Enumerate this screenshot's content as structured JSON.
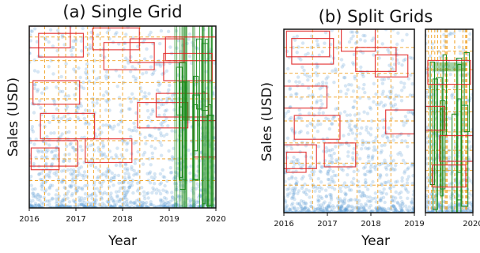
{
  "chart_data": [
    {
      "type": "scatter",
      "title": "(a) Single Grid",
      "xlabel": "Year",
      "ylabel": "Sales (USD)",
      "xlim": [
        2016,
        2020
      ],
      "xticks": [
        "2016",
        "2017",
        "2018",
        "2019",
        "2020"
      ],
      "ylim": [
        0,
        1
      ],
      "grid": "dashed",
      "scatter_color": "#5b9bd5",
      "box_colors": {
        "red": "#e02020",
        "green": "#1a8a1a",
        "grid": "#f0a020"
      }
    },
    {
      "type": "scatter",
      "title": "(b) Split Grids",
      "xlabel": "Year",
      "ylabel": "Sales (USD)",
      "xlim": [
        2016,
        2020
      ],
      "xticks": [
        "2016",
        "2017",
        "2018",
        "2019",
        "2020"
      ],
      "ylim": [
        0,
        1
      ],
      "grid": "dashed",
      "split_at": 2019,
      "scatter_color": "#5b9bd5",
      "box_colors": {
        "red": "#e02020",
        "green": "#1a8a1a",
        "grid": "#f0a020"
      }
    }
  ]
}
